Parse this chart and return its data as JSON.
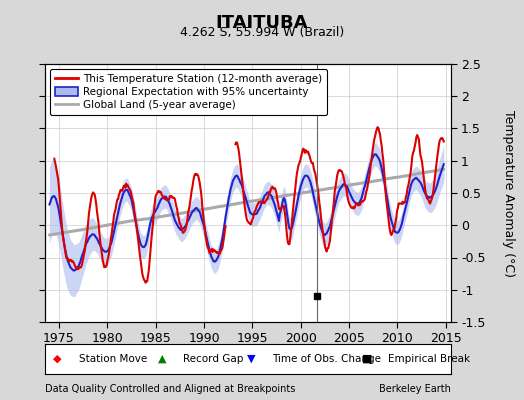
{
  "title": "ITAITUBA",
  "subtitle": "4.262 S, 55.994 W (Brazil)",
  "ylabel": "Temperature Anomaly (°C)",
  "xlim": [
    1973.5,
    2015.5
  ],
  "ylim": [
    -1.5,
    2.5
  ],
  "yticks": [
    -1.5,
    -1.0,
    -0.5,
    0.0,
    0.5,
    1.0,
    1.5,
    2.0,
    2.5
  ],
  "xticks": [
    1975,
    1980,
    1985,
    1990,
    1995,
    2000,
    2005,
    2010,
    2015
  ],
  "footer_left": "Data Quality Controlled and Aligned at Breakpoints",
  "footer_right": "Berkeley Earth",
  "empirical_break_year": 2001.7,
  "vertical_line_year": 2001.7,
  "bg_color": "#d8d8d8",
  "plot_bg_color": "#ffffff",
  "red_line_color": "#dd0000",
  "blue_line_color": "#2222cc",
  "blue_fill_color": "#aabbee",
  "gray_line_color": "#aaaaaa",
  "legend_items": [
    "This Temperature Station (12-month average)",
    "Regional Expectation with 95% uncertainty",
    "Global Land (5-year average)"
  ],
  "marker_labels": [
    "Station Move",
    "Record Gap",
    "Time of Obs. Change",
    "Empirical Break"
  ],
  "marker_colors": [
    "red",
    "green",
    "blue",
    "black"
  ],
  "marker_shapes": [
    "D",
    "^",
    "v",
    "s"
  ]
}
